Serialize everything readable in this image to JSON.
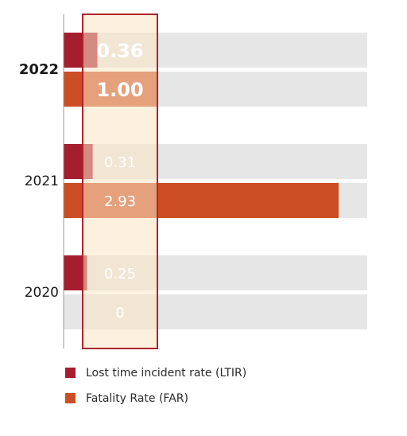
{
  "chart_data": {
    "type": "bar",
    "orientation": "horizontal",
    "categories": [
      "2022",
      "2021",
      "2020"
    ],
    "highlighted_category": "2022",
    "series": [
      {
        "name": "Lost time incident rate (LTIR)",
        "values": [
          0.36,
          0.31,
          0.25
        ],
        "labels": [
          "0.36",
          "0.31",
          "0.25"
        ],
        "color": "#a51e2d"
      },
      {
        "name": "Fatality Rate (FAR)",
        "values": [
          1.0,
          2.93,
          0
        ],
        "labels": [
          "1.00",
          "2.93",
          "0"
        ],
        "color": "#cc4e24"
      }
    ],
    "xlim": [
      0,
      3.1
    ],
    "track_color": "#e6e6e6",
    "highlight_band_color": "#fae3c4",
    "highlight_border_color": "#b0222b",
    "legend_placement": "bottom-left"
  }
}
